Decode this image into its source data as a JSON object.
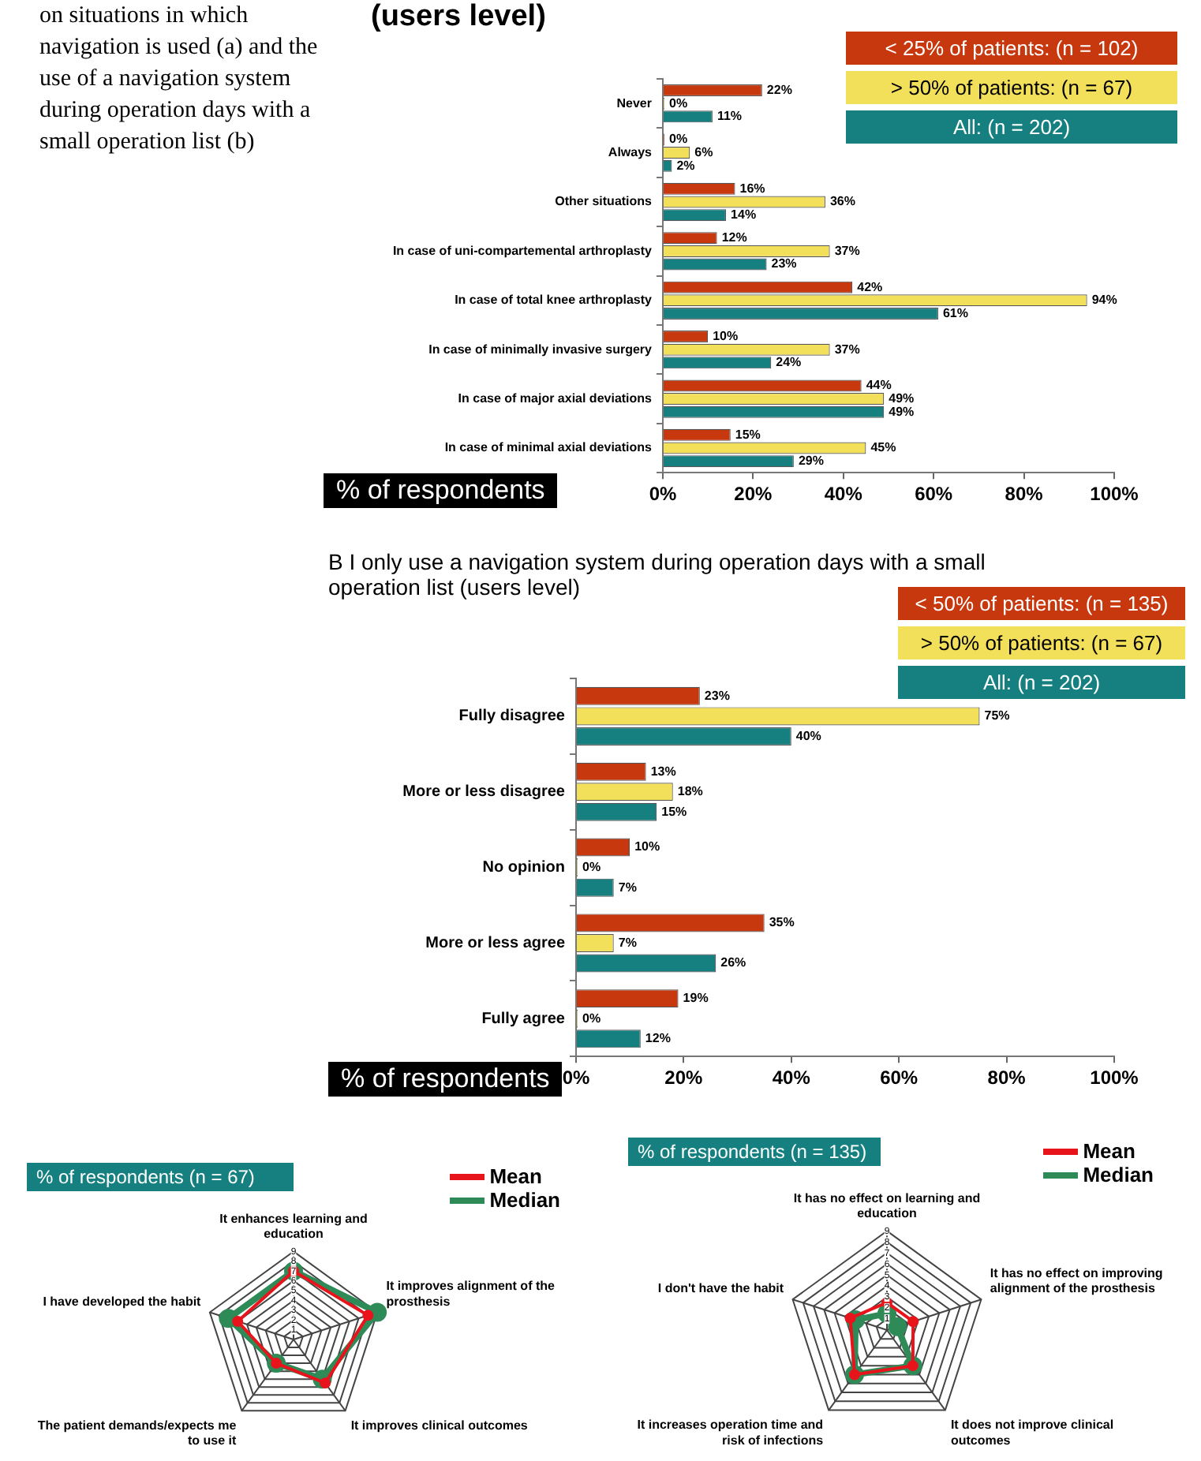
{
  "chart_data": [
    {
      "type": "bar",
      "orientation": "horizontal",
      "title": "(users level)",
      "xlabel": "% of respondents",
      "annotations": [
        "on situations in which navigation is used (a) and the use of a navigation system during operation days with a small operation list (b)"
      ],
      "legend": "top right",
      "categories": [
        "Never",
        "Always",
        "Other situations",
        "In case of uni-compartemental arthroplasty",
        "In case of total knee arthroplasty",
        "In case of minimally invasive surgery",
        "In case of major axial deviations",
        "In case of minimal axial deviations"
      ],
      "series": [
        {
          "name": "< 25% of patients: (n = 102)",
          "color": "#c8380e",
          "values": [
            22,
            0,
            16,
            12,
            42,
            10,
            44,
            15
          ],
          "value_labels": [
            "22%",
            "0%",
            "16%",
            "12%",
            "42%",
            "10%",
            "44%",
            "15%"
          ]
        },
        {
          "name": "> 50% of patients: (n = 67)",
          "color": "#f2df5a",
          "values": [
            0,
            6,
            36,
            37,
            94,
            37,
            49,
            45
          ],
          "value_labels": [
            "0%",
            "6%",
            "36%",
            "37%",
            "94%",
            "37%",
            "49%",
            "45%"
          ]
        },
        {
          "name": "All: (n = 202)",
          "color": "#168080",
          "values": [
            11,
            2,
            14,
            23,
            61,
            24,
            49,
            29
          ],
          "value_labels": [
            "11%",
            "2%",
            "14%",
            "23%",
            "61%",
            "24%",
            "49%",
            "29%"
          ]
        }
      ],
      "xlim": [
        0,
        100
      ],
      "xticks": [
        {
          "value": 0,
          "label": "0%"
        },
        {
          "value": 20,
          "label": "20%"
        },
        {
          "value": 40,
          "label": "40%"
        },
        {
          "value": 60,
          "label": "60%"
        },
        {
          "value": 80,
          "label": "80%"
        },
        {
          "value": 100,
          "label": "100%"
        }
      ]
    },
    {
      "type": "bar",
      "orientation": "horizontal",
      "title": "B I only use a navigation system during operation days with a small operation list (users level)",
      "xlabel": "% of respondents",
      "legend": "top right",
      "categories": [
        "Fully disagree",
        "More or less disagree",
        "No opinion",
        "More or less agree",
        "Fully agree"
      ],
      "series": [
        {
          "name": "< 50% of patients: (n = 135)",
          "color": "#c8380e",
          "values": [
            23,
            13,
            10,
            35,
            19
          ],
          "value_labels": [
            "23%",
            "13%",
            "10%",
            "35%",
            "19%"
          ]
        },
        {
          "name": "> 50% of patients: (n = 67)",
          "color": "#f2df5a",
          "values": [
            75,
            18,
            0,
            7,
            0
          ],
          "value_labels": [
            "75%",
            "18%",
            "0%",
            "7%",
            "0%"
          ]
        },
        {
          "name": "All: (n = 202)",
          "color": "#168080",
          "values": [
            40,
            15,
            7,
            26,
            12
          ],
          "value_labels": [
            "40%",
            "15%",
            "7%",
            "26%",
            "12%"
          ]
        }
      ],
      "xlim": [
        0,
        100
      ],
      "xticks": [
        {
          "value": 0,
          "label": "0%"
        },
        {
          "value": 20,
          "label": "20%"
        },
        {
          "value": 40,
          "label": "40%"
        },
        {
          "value": 60,
          "label": "60%"
        },
        {
          "value": 80,
          "label": "80%"
        },
        {
          "value": 100,
          "label": "100%"
        }
      ]
    },
    {
      "type": "radar",
      "title": "% of respondents (n = 67)",
      "legend": "top right",
      "grid": true,
      "marker": "circle",
      "categories": [
        "It enhances learning and education",
        "It improves alignment of the prosthesis",
        "It improves clinical outcomes",
        "The patient demands/expects me to use it",
        "I have developed the habit"
      ],
      "series": [
        {
          "name": "Mean",
          "color": "#e8141c",
          "values": [
            7,
            8,
            5.5,
            3,
            6
          ]
        },
        {
          "name": "Median",
          "color": "#2e8b57",
          "values": [
            7,
            9,
            5,
            3,
            7
          ]
        }
      ],
      "ylim": [
        0,
        9
      ],
      "yticks": [
        1,
        2,
        3,
        4,
        5,
        6,
        7,
        8,
        9
      ]
    },
    {
      "type": "radar",
      "title": "% of respondents (n = 135)",
      "legend": "top right",
      "grid": true,
      "marker": "circle",
      "categories": [
        "It has no effect on learning and education",
        "It has no effect on improving alignment of the prosthesis",
        "It does not improve clinical outcomes",
        "It increases operation time and risk of infections",
        "I don't have the habit"
      ],
      "series": [
        {
          "name": "Mean",
          "color": "#e8141c",
          "values": [
            2.5,
            2.5,
            4,
            5,
            3.5
          ]
        },
        {
          "name": "Median",
          "color": "#2e8b57",
          "values": [
            1.5,
            1,
            4,
            5,
            3
          ]
        }
      ],
      "ylim": [
        0,
        9
      ],
      "yticks": [
        1,
        2,
        3,
        4,
        5,
        6,
        7,
        8,
        9
      ]
    }
  ]
}
